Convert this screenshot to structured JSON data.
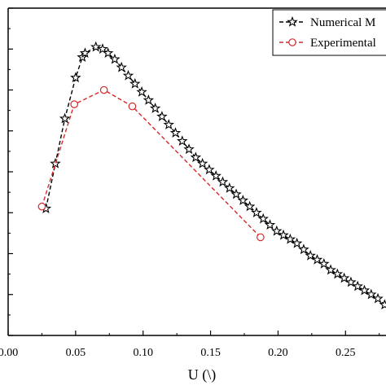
{
  "chart_data": {
    "type": "line",
    "xlabel": "U (\\)",
    "ylabel": "",
    "xlim": [
      0.0,
      0.28
    ],
    "ylim": [
      0,
      8
    ],
    "xticks": [
      "0.00",
      "0.05",
      "0.10",
      "0.15",
      "0.20",
      "0.25"
    ],
    "xtick_values": [
      0.0,
      0.05,
      0.1,
      0.15,
      0.2,
      0.25
    ],
    "ytick_values": [
      0,
      1,
      2,
      3,
      4,
      5,
      6,
      7,
      8
    ],
    "grid": false,
    "legend_position": "top-right",
    "series": [
      {
        "name": "Numerical M",
        "color": "#000000",
        "line_style": "dashed",
        "marker": "star",
        "x": [
          0.028,
          0.035,
          0.042,
          0.05,
          0.055,
          0.057,
          0.065,
          0.07,
          0.074,
          0.079,
          0.084,
          0.089,
          0.094,
          0.099,
          0.104,
          0.109,
          0.114,
          0.119,
          0.124,
          0.129,
          0.134,
          0.139,
          0.144,
          0.149,
          0.154,
          0.159,
          0.164,
          0.169,
          0.174,
          0.179,
          0.184,
          0.189,
          0.194,
          0.199,
          0.204,
          0.209,
          0.214,
          0.219,
          0.224,
          0.229,
          0.234,
          0.239,
          0.244,
          0.249,
          0.254,
          0.259,
          0.264,
          0.269,
          0.274,
          0.279
        ],
        "y": [
          3.1,
          4.2,
          5.3,
          6.3,
          6.8,
          6.9,
          7.05,
          7.0,
          6.9,
          6.75,
          6.55,
          6.35,
          6.15,
          5.95,
          5.75,
          5.55,
          5.35,
          5.15,
          4.95,
          4.75,
          4.55,
          4.35,
          4.2,
          4.05,
          3.9,
          3.75,
          3.6,
          3.45,
          3.3,
          3.15,
          3.0,
          2.85,
          2.7,
          2.55,
          2.45,
          2.35,
          2.25,
          2.1,
          1.95,
          1.85,
          1.75,
          1.6,
          1.5,
          1.4,
          1.3,
          1.2,
          1.1,
          1.0,
          0.9,
          0.75
        ]
      },
      {
        "name": "Experimental",
        "color": "#d62728",
        "line_style": "dashed",
        "marker": "circle",
        "x": [
          0.025,
          0.049,
          0.071,
          0.092,
          0.187
        ],
        "y": [
          3.15,
          5.65,
          6.0,
          5.6,
          2.4
        ]
      }
    ]
  }
}
